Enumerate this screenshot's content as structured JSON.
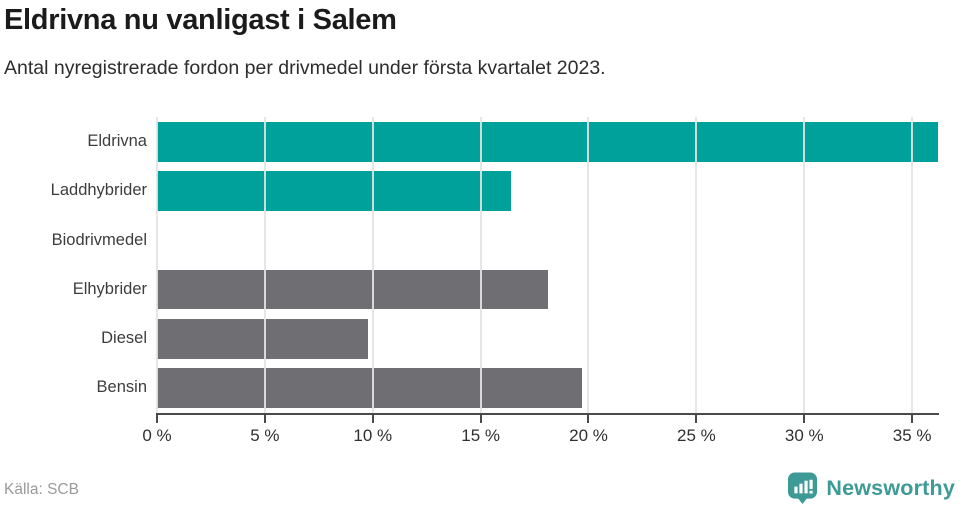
{
  "header": {
    "title": "Eldrivna nu vanligast i Salem",
    "subtitle": "Antal nyregistrerade fordon per drivmedel under första kvartalet 2023."
  },
  "chart_data": {
    "type": "bar",
    "orientation": "horizontal",
    "title": "Eldrivna nu vanligast i Salem",
    "subtitle": "Antal nyregistrerade fordon per drivmedel under första kvartalet 2023.",
    "categories": [
      "Eldrivna",
      "Laddhybrider",
      "Biodrivmedel",
      "Elhybrider",
      "Diesel",
      "Bensin"
    ],
    "values": [
      36.2,
      16.4,
      0,
      18.1,
      9.8,
      19.7
    ],
    "unit": "%",
    "bar_colors": [
      "#00a19a",
      "#00a19a",
      "#00a19a",
      "#6e6e73",
      "#6e6e73",
      "#6e6e73"
    ],
    "xlabel": "",
    "ylabel": "",
    "xlim": [
      0,
      36.2
    ],
    "xticks": [
      0,
      5,
      10,
      15,
      20,
      25,
      30,
      35
    ],
    "xtick_labels": [
      "0 %",
      "5 %",
      "10 %",
      "15 %",
      "20 %",
      "25 %",
      "30 %",
      "35 %"
    ],
    "grid": "vertical",
    "legend": "none"
  },
  "footer": {
    "source": "Källa: SCB",
    "brand": "Newsworthy"
  },
  "colors": {
    "accent_teal": "#00a19a",
    "muted_gray": "#6e6e73",
    "brand_teal": "#3d9a96",
    "gridline": "#e3e3e3",
    "axis": "#4a4a4a"
  }
}
